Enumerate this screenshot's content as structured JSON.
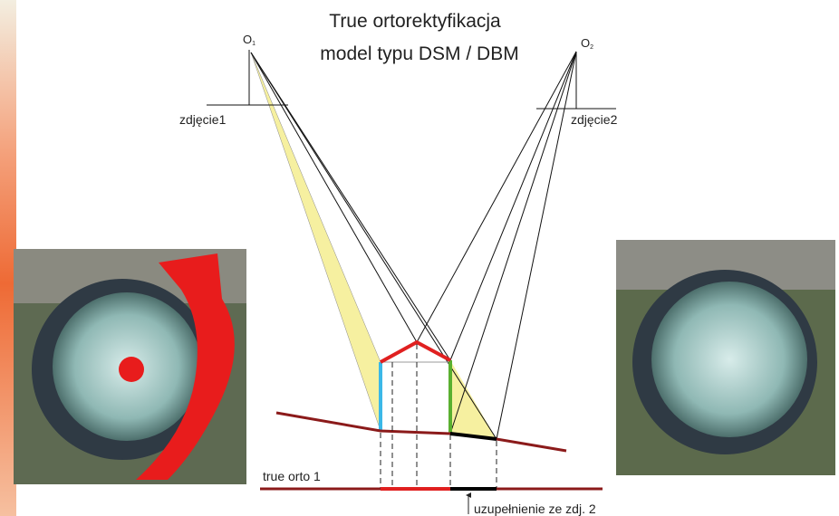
{
  "header": {
    "title": [
      "True ortorektyfikacja",
      "model typu DSM / DBM"
    ]
  },
  "nodes": [
    {
      "label": "O",
      "subscript": "1",
      "caption": "zdjęcie1"
    },
    {
      "label": "O",
      "subscript": "2",
      "caption": "zdjęcie2"
    }
  ],
  "labels": {
    "ortho": "true orto 1",
    "fill": "uzupełnienie ze zdj. 2"
  }
}
